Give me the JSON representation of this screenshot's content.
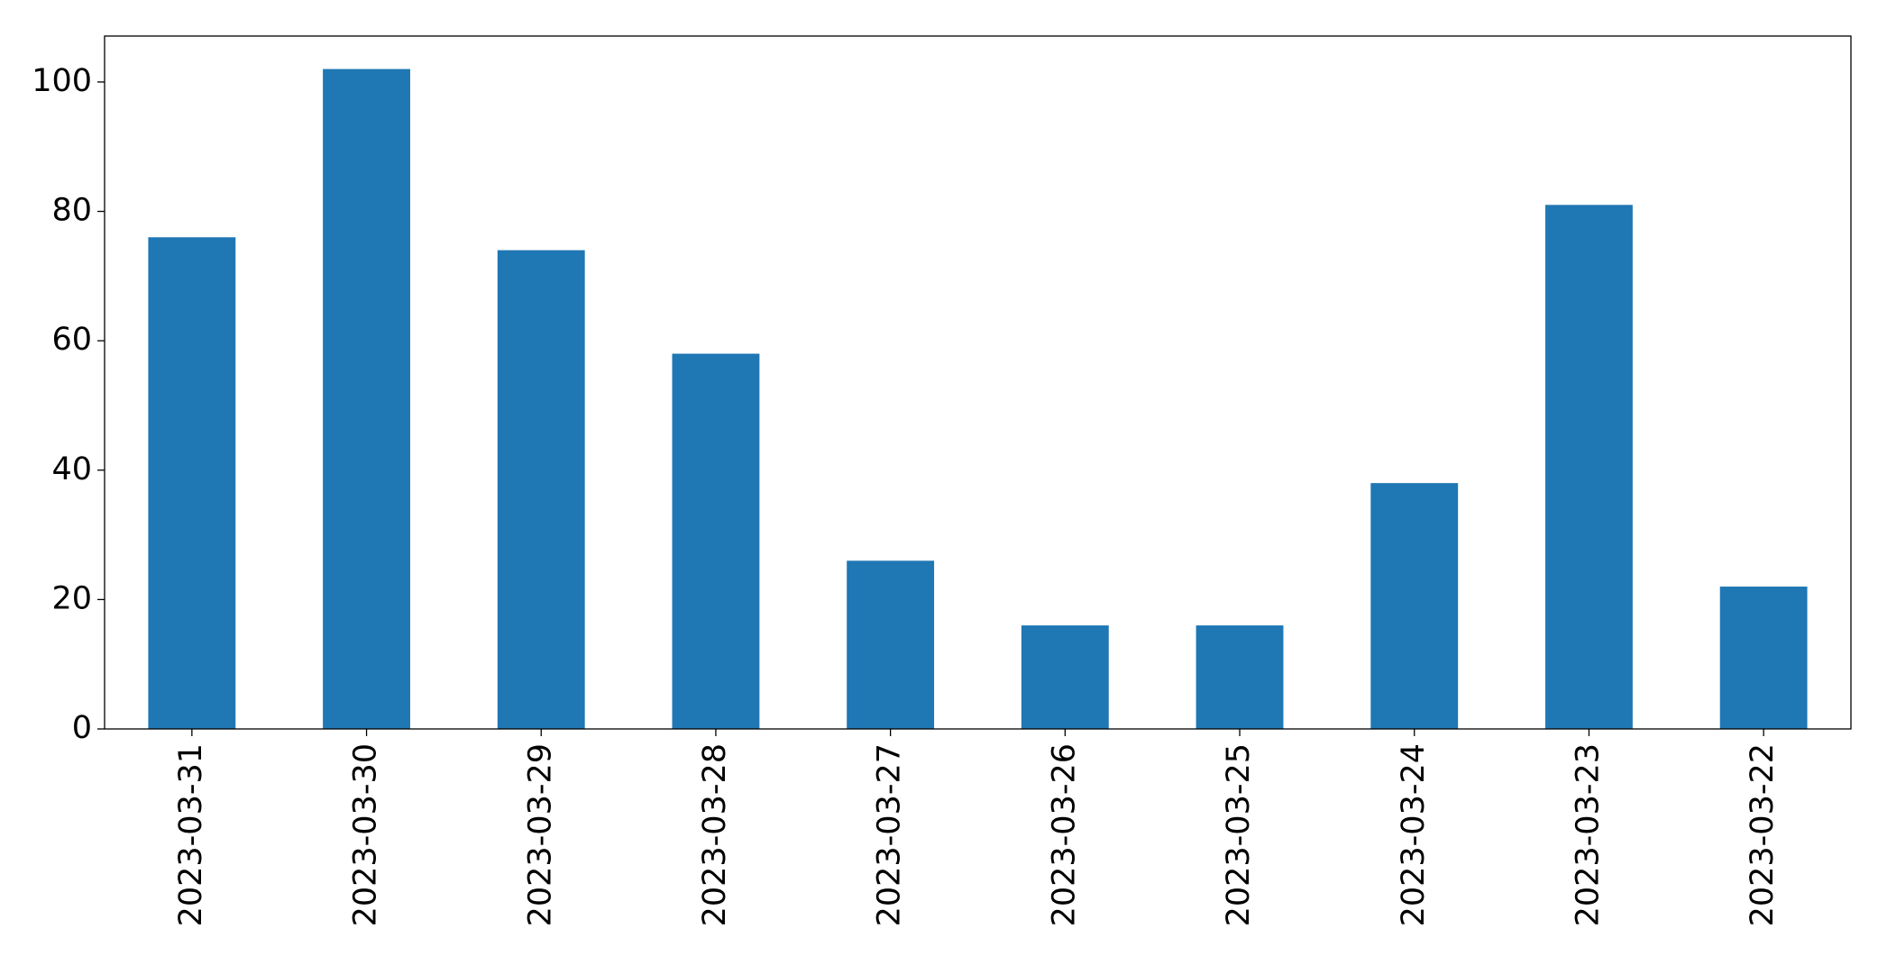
{
  "chart_data": {
    "type": "bar",
    "categories": [
      "2023-03-31",
      "2023-03-30",
      "2023-03-29",
      "2023-03-28",
      "2023-03-27",
      "2023-03-26",
      "2023-03-25",
      "2023-03-24",
      "2023-03-23",
      "2023-03-22"
    ],
    "values": [
      76,
      102,
      74,
      58,
      26,
      16,
      16,
      38,
      81,
      22
    ],
    "color": "#1f77b4",
    "ylim": [
      0,
      107.1
    ],
    "yticks": [
      0,
      20,
      40,
      60,
      80,
      100
    ],
    "grid": false
  }
}
